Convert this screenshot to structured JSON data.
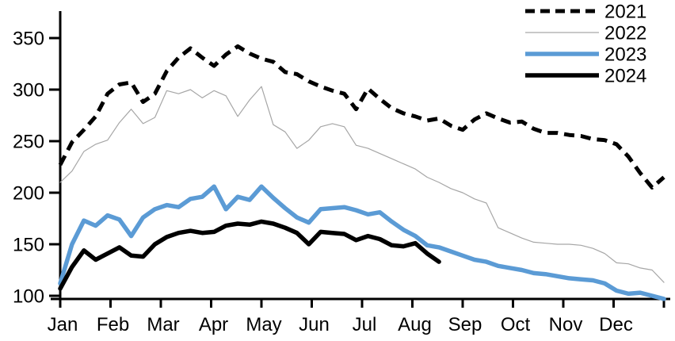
{
  "chart_data": {
    "type": "line",
    "title": "",
    "xlabel": "",
    "ylabel": "",
    "grid": false,
    "x_axis": {
      "tick_labels": [
        "Jan",
        "Feb",
        "Mar",
        "Apr",
        "May",
        "Jun",
        "Jul",
        "Aug",
        "Sep",
        "Oct",
        "Nov",
        "Dec"
      ],
      "resolution": "weekly",
      "weeks_total": 52
    },
    "y_axis": {
      "ticks": [
        100,
        150,
        200,
        250,
        300,
        350
      ],
      "range": [
        100,
        375
      ]
    },
    "legend": {
      "position": "top-right",
      "entries": [
        "2021",
        "2022",
        "2023",
        "2024"
      ]
    },
    "series": [
      {
        "name": "2021",
        "color": "#000000",
        "style": "dashed",
        "width": 5,
        "values": [
          227,
          249,
          261,
          274,
          296,
          305,
          307,
          288,
          296,
          318,
          331,
          340,
          331,
          323,
          334,
          342,
          335,
          330,
          327,
          317,
          315,
          308,
          303,
          299,
          296,
          281,
          301,
          291,
          282,
          277,
          274,
          270,
          272,
          265,
          261,
          271,
          277,
          272,
          268,
          269,
          262,
          258,
          258,
          256,
          255,
          252,
          251,
          247,
          235,
          219,
          205,
          215
        ]
      },
      {
        "name": "2022",
        "color": "#a6a6a6",
        "style": "solid",
        "width": 1.2,
        "values": [
          210,
          221,
          240,
          247,
          251,
          268,
          281,
          267,
          273,
          299,
          296,
          300,
          292,
          299,
          294,
          274,
          290,
          303,
          266,
          259,
          243,
          251,
          264,
          267,
          264,
          246,
          243,
          238,
          233,
          228,
          223,
          215,
          210,
          204,
          200,
          194,
          190,
          166,
          161,
          156,
          152,
          151,
          150,
          150,
          149,
          146,
          141,
          132,
          131,
          127,
          125,
          113
        ]
      },
      {
        "name": "2023",
        "color": "#5b9bd5",
        "style": "solid",
        "width": 5.5,
        "values": [
          112,
          150,
          173,
          168,
          178,
          174,
          158,
          176,
          184,
          188,
          186,
          194,
          196,
          206,
          184,
          196,
          193,
          206,
          195,
          185,
          176,
          171,
          184,
          185,
          186,
          183,
          179,
          181,
          172,
          164,
          158,
          149,
          147,
          143,
          139,
          135,
          133,
          129,
          127,
          125,
          122,
          121,
          119,
          117,
          116,
          115,
          112,
          105,
          102,
          103,
          100,
          97
        ]
      },
      {
        "name": "2024",
        "color": "#000000",
        "style": "solid",
        "width": 5.5,
        "values": [
          107,
          128,
          144,
          135,
          141,
          147,
          139,
          138,
          150,
          157,
          161,
          163,
          161,
          162,
          168,
          170,
          169,
          172,
          170,
          166,
          161,
          150,
          162,
          161,
          160,
          154,
          158,
          155,
          149,
          148,
          151,
          141,
          133
        ]
      }
    ]
  }
}
